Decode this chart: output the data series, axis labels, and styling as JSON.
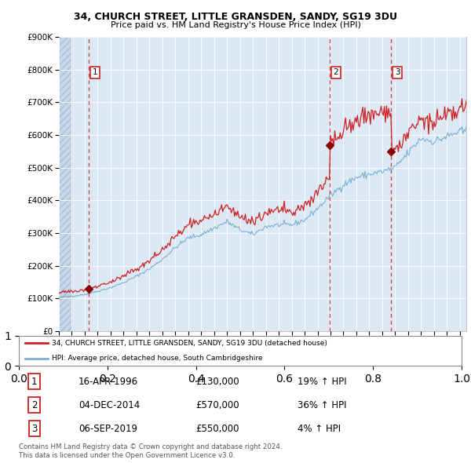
{
  "title1": "34, CHURCH STREET, LITTLE GRANSDEN, SANDY, SG19 3DU",
  "title2": "Price paid vs. HM Land Registry's House Price Index (HPI)",
  "ylim": [
    0,
    900000
  ],
  "yticks": [
    0,
    100000,
    200000,
    300000,
    400000,
    500000,
    600000,
    700000,
    800000,
    900000
  ],
  "ytick_labels": [
    "£0",
    "£100K",
    "£200K",
    "£300K",
    "£400K",
    "£500K",
    "£600K",
    "£700K",
    "£800K",
    "£900K"
  ],
  "xlim_start": 1994.0,
  "xlim_end": 2025.5,
  "hpi_color": "#7bafd4",
  "price_color": "#cc2222",
  "sale_dates": [
    1996.29,
    2014.92,
    2019.68
  ],
  "sale_prices": [
    130000,
    570000,
    550000
  ],
  "sale_labels": [
    "1",
    "2",
    "3"
  ],
  "table_rows": [
    [
      "1",
      "16-APR-1996",
      "£130,000",
      "19% ↑ HPI"
    ],
    [
      "2",
      "04-DEC-2014",
      "£570,000",
      "36% ↑ HPI"
    ],
    [
      "3",
      "06-SEP-2019",
      "£550,000",
      "4% ↑ HPI"
    ]
  ],
  "legend_line1": "34, CHURCH STREET, LITTLE GRANSDEN, SANDY, SG19 3DU (detached house)",
  "legend_line2": "HPI: Average price, detached house, South Cambridgeshire",
  "footer1": "Contains HM Land Registry data © Crown copyright and database right 2024.",
  "footer2": "This data is licensed under the Open Government Licence v3.0.",
  "background_color": "#dce9f5",
  "grid_color": "#ffffff",
  "hatch_bg_color": "#c5d8eb"
}
